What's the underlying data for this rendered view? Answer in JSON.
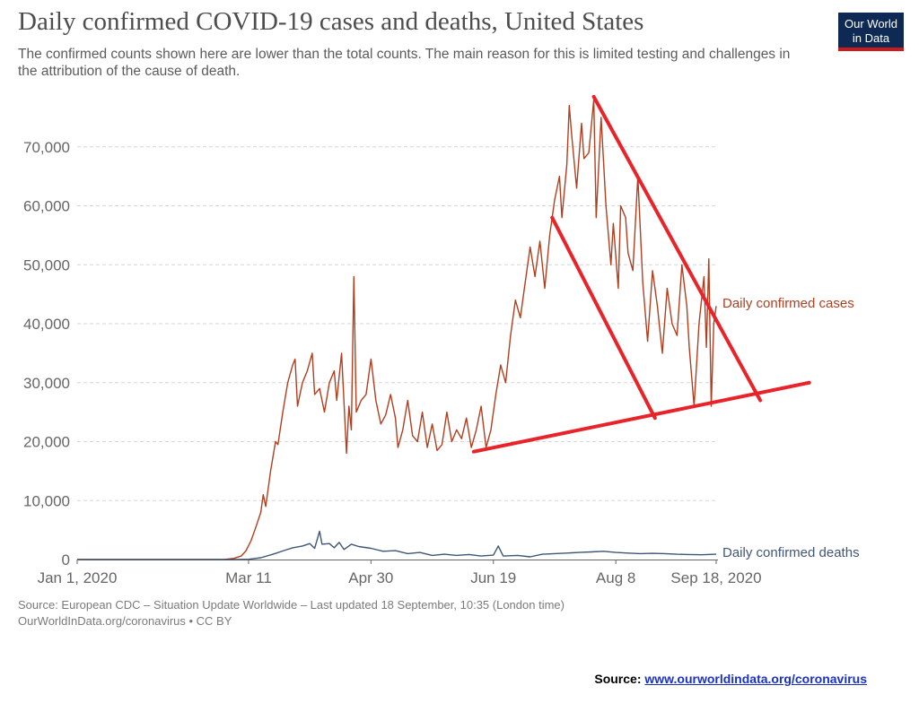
{
  "header": {
    "title": "Daily confirmed COVID-19 cases and deaths, United States",
    "subtitle": "The confirmed counts shown here are lower than the total counts. The main reason for this is limited testing and challenges in the attribution of the cause of death.",
    "logo_line1": "Our World",
    "logo_line2": "in Data"
  },
  "footer": {
    "source_line1": "Source: European CDC – Situation Update Worldwide – Last updated 18 September, 10:35 (London time)",
    "source_line2": "OurWorldInData.org/coronavirus • CC BY",
    "source_label": "Source:",
    "source_link": "www.ourworldindata.org/coronavirus"
  },
  "colors": {
    "cases": "#b13f1f",
    "deaths": "#3f5677",
    "annotation": "#e8242a",
    "logo_bg": "#0e2a54",
    "logo_bar": "#c91b1b"
  },
  "chart_data": {
    "type": "line",
    "x_ticks": [
      "Jan 1, 2020",
      "Mar 11",
      "Apr 30",
      "Jun 19",
      "Aug 8",
      "Sep 18, 2020"
    ],
    "x_tick_days": [
      0,
      70,
      120,
      170,
      220,
      261
    ],
    "xlim_days": [
      0,
      261
    ],
    "y_ticks": [
      0,
      10000,
      20000,
      30000,
      40000,
      50000,
      60000,
      70000
    ],
    "y_tick_labels": [
      "0",
      "10,000",
      "20,000",
      "30,000",
      "40,000",
      "50,000",
      "60,000",
      "70,000"
    ],
    "ylim": [
      0,
      80000
    ],
    "grid": "horizontal dashed",
    "series": [
      {
        "name": "Daily confirmed cases",
        "color": "#b13f1f",
        "points": [
          [
            0,
            0
          ],
          [
            60,
            0
          ],
          [
            64,
            200
          ],
          [
            67,
            600
          ],
          [
            69,
            1500
          ],
          [
            71,
            3200
          ],
          [
            73,
            5500
          ],
          [
            75,
            8000
          ],
          [
            76,
            11000
          ],
          [
            77,
            9000
          ],
          [
            79,
            15000
          ],
          [
            81,
            20000
          ],
          [
            82,
            19500
          ],
          [
            84,
            25000
          ],
          [
            86,
            30000
          ],
          [
            88,
            33000
          ],
          [
            89,
            34000
          ],
          [
            90,
            26000
          ],
          [
            92,
            30000
          ],
          [
            94,
            32000
          ],
          [
            96,
            35000
          ],
          [
            97,
            28000
          ],
          [
            99,
            29000
          ],
          [
            101,
            25000
          ],
          [
            103,
            30000
          ],
          [
            105,
            32000
          ],
          [
            106,
            27000
          ],
          [
            108,
            35000
          ],
          [
            110,
            18000
          ],
          [
            111,
            26000
          ],
          [
            112,
            22000
          ],
          [
            113,
            48000
          ],
          [
            114,
            25000
          ],
          [
            116,
            27000
          ],
          [
            118,
            28000
          ],
          [
            120,
            34000
          ],
          [
            122,
            27000
          ],
          [
            124,
            23000
          ],
          [
            126,
            24500
          ],
          [
            128,
            28000
          ],
          [
            130,
            24000
          ],
          [
            131,
            19000
          ],
          [
            133,
            22000
          ],
          [
            135,
            27000
          ],
          [
            137,
            21000
          ],
          [
            139,
            20000
          ],
          [
            141,
            25000
          ],
          [
            143,
            19000
          ],
          [
            145,
            23000
          ],
          [
            147,
            18500
          ],
          [
            149,
            19500
          ],
          [
            151,
            25000
          ],
          [
            153,
            20000
          ],
          [
            155,
            22000
          ],
          [
            157,
            20500
          ],
          [
            159,
            24000
          ],
          [
            161,
            19000
          ],
          [
            163,
            22000
          ],
          [
            165,
            26000
          ],
          [
            167,
            19000
          ],
          [
            169,
            22000
          ],
          [
            171,
            28000
          ],
          [
            173,
            33000
          ],
          [
            175,
            30000
          ],
          [
            177,
            38000
          ],
          [
            179,
            44000
          ],
          [
            181,
            41000
          ],
          [
            183,
            47000
          ],
          [
            185,
            53000
          ],
          [
            187,
            48000
          ],
          [
            189,
            54000
          ],
          [
            191,
            46000
          ],
          [
            193,
            55000
          ],
          [
            195,
            61000
          ],
          [
            197,
            65000
          ],
          [
            198,
            58000
          ],
          [
            200,
            67000
          ],
          [
            201,
            77000
          ],
          [
            202,
            72000
          ],
          [
            204,
            63000
          ],
          [
            206,
            74000
          ],
          [
            207,
            68000
          ],
          [
            209,
            69000
          ],
          [
            211,
            78000
          ],
          [
            212,
            58000
          ],
          [
            214,
            75000
          ],
          [
            216,
            60000
          ],
          [
            218,
            50000
          ],
          [
            219,
            57000
          ],
          [
            221,
            46000
          ],
          [
            222,
            60000
          ],
          [
            224,
            58000
          ],
          [
            225,
            52000
          ],
          [
            227,
            49000
          ],
          [
            229,
            65000
          ],
          [
            231,
            47000
          ],
          [
            233,
            37000
          ],
          [
            235,
            49000
          ],
          [
            237,
            43000
          ],
          [
            239,
            35000
          ],
          [
            241,
            46000
          ],
          [
            243,
            40000
          ],
          [
            245,
            38000
          ],
          [
            247,
            50000
          ],
          [
            249,
            43000
          ],
          [
            250,
            36000
          ],
          [
            252,
            26000
          ],
          [
            254,
            40000
          ],
          [
            256,
            48000
          ],
          [
            257,
            36000
          ],
          [
            258,
            51000
          ],
          [
            259,
            26000
          ],
          [
            260,
            40000
          ],
          [
            261,
            43000
          ]
        ]
      },
      {
        "name": "Daily confirmed deaths",
        "color": "#3f5677",
        "points": [
          [
            0,
            0
          ],
          [
            65,
            0
          ],
          [
            70,
            50
          ],
          [
            75,
            300
          ],
          [
            80,
            900
          ],
          [
            85,
            1600
          ],
          [
            88,
            2000
          ],
          [
            92,
            2300
          ],
          [
            95,
            2700
          ],
          [
            97,
            1900
          ],
          [
            99,
            4800
          ],
          [
            100,
            2600
          ],
          [
            103,
            2700
          ],
          [
            105,
            2000
          ],
          [
            107,
            2900
          ],
          [
            109,
            1700
          ],
          [
            112,
            2600
          ],
          [
            115,
            2200
          ],
          [
            120,
            1900
          ],
          [
            125,
            1400
          ],
          [
            130,
            1500
          ],
          [
            135,
            1000
          ],
          [
            140,
            1200
          ],
          [
            145,
            700
          ],
          [
            150,
            900
          ],
          [
            155,
            700
          ],
          [
            160,
            850
          ],
          [
            165,
            600
          ],
          [
            170,
            750
          ],
          [
            172,
            2300
          ],
          [
            174,
            600
          ],
          [
            180,
            700
          ],
          [
            185,
            450
          ],
          [
            190,
            900
          ],
          [
            195,
            1000
          ],
          [
            200,
            1100
          ],
          [
            205,
            1200
          ],
          [
            210,
            1300
          ],
          [
            215,
            1400
          ],
          [
            220,
            1200
          ],
          [
            225,
            1100
          ],
          [
            230,
            1000
          ],
          [
            235,
            1050
          ],
          [
            240,
            1000
          ],
          [
            245,
            900
          ],
          [
            250,
            850
          ],
          [
            255,
            800
          ],
          [
            261,
            900
          ]
        ]
      }
    ],
    "labels": [
      "Daily confirmed cases",
      "Daily confirmed deaths"
    ],
    "annotations": [
      {
        "type": "line",
        "color": "#e8242a",
        "from": [
          162,
          18300
        ],
        "to": [
          299,
          30000
        ]
      },
      {
        "type": "line",
        "color": "#e8242a",
        "from": [
          211,
          78500
        ],
        "to": [
          279,
          27000
        ]
      },
      {
        "type": "line",
        "color": "#e8242a",
        "from": [
          194,
          58000
        ],
        "to": [
          236,
          24000
        ]
      }
    ]
  }
}
